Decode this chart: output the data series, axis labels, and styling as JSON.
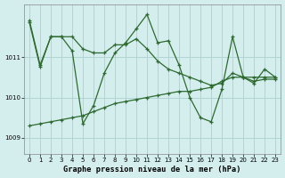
{
  "title": "Graphe pression niveau de la mer (hPa)",
  "background_color": "#d4eeee",
  "grid_color": "#b0d4d4",
  "line_color": "#2d6a2d",
  "xlim": [
    -0.5,
    23.5
  ],
  "ylim": [
    1008.6,
    1012.3
  ],
  "yticks": [
    1009,
    1010,
    1011
  ],
  "xticks": [
    0,
    1,
    2,
    3,
    4,
    5,
    6,
    7,
    8,
    9,
    10,
    11,
    12,
    13,
    14,
    15,
    16,
    17,
    18,
    19,
    20,
    21,
    22,
    23
  ],
  "series": {
    "jagged": [
      1011.9,
      1010.8,
      1011.5,
      1011.5,
      1011.15,
      1009.35,
      1009.8,
      1010.6,
      1011.1,
      1011.35,
      1011.7,
      1012.05,
      1011.35,
      1011.4,
      1010.8,
      1010.0,
      1009.5,
      1009.4,
      1010.2,
      1011.5,
      1010.5,
      1010.35,
      1010.7,
      1010.5
    ],
    "smooth1": [
      1011.85,
      1010.75,
      1011.5,
      1011.5,
      1011.5,
      1011.2,
      1011.1,
      1011.1,
      1011.3,
      1011.3,
      1011.45,
      1011.2,
      1010.9,
      1010.7,
      1010.6,
      1010.5,
      1010.4,
      1010.3,
      1010.35,
      1010.6,
      1010.5,
      1010.4,
      1010.45,
      1010.45
    ],
    "smooth2": [
      1009.3,
      1009.35,
      1009.4,
      1009.45,
      1009.5,
      1009.55,
      1009.65,
      1009.75,
      1009.85,
      1009.9,
      1009.95,
      1010.0,
      1010.05,
      1010.1,
      1010.15,
      1010.15,
      1010.2,
      1010.25,
      1010.4,
      1010.5,
      1010.5,
      1010.5,
      1010.5,
      1010.5
    ]
  }
}
